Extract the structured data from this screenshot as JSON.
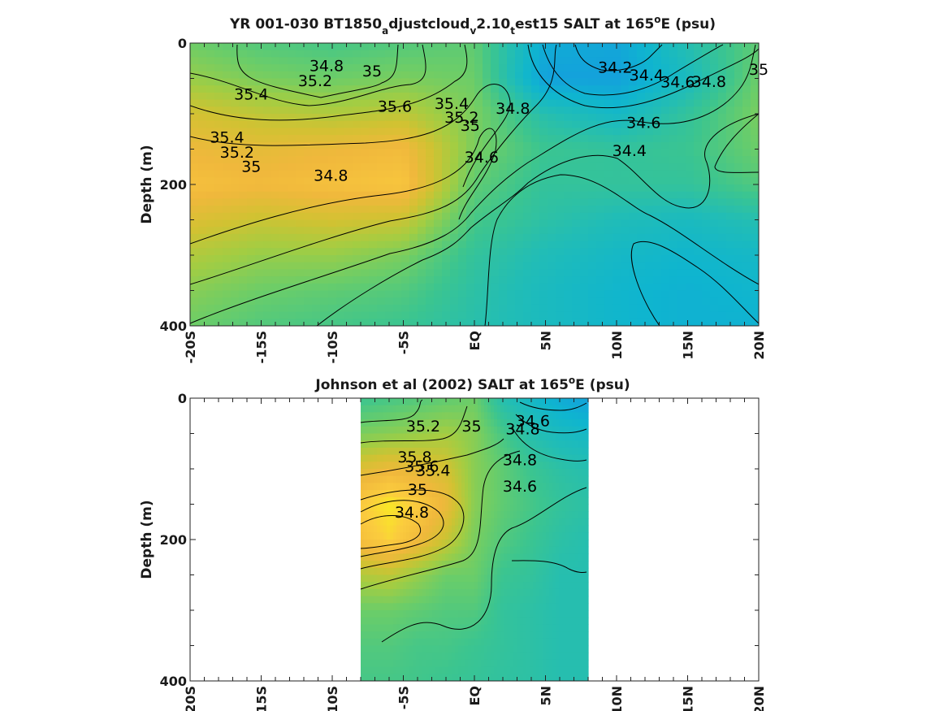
{
  "chart_data": [
    {
      "type": "heatmap",
      "title_parts": [
        "YR 001-030 BT1850",
        "a",
        "djustcloud",
        "v",
        "2.10",
        "t",
        "est15 SALT at 165",
        "o",
        "E (psu)"
      ],
      "ylabel": "Depth (m)",
      "xlim": [
        -20,
        20
      ],
      "ylim": [
        0,
        400
      ],
      "y_reversed": true,
      "x_ticks": [
        {
          "value": -20,
          "label": "-20S"
        },
        {
          "value": -15,
          "label": "-15S"
        },
        {
          "value": -10,
          "label": "-10S"
        },
        {
          "value": -5,
          "label": "-5S"
        },
        {
          "value": 0,
          "label": "EQ"
        },
        {
          "value": 5,
          "label": "5N"
        },
        {
          "value": 10,
          "label": "10N"
        },
        {
          "value": 15,
          "label": "15N"
        },
        {
          "value": 20,
          "label": "20N"
        }
      ],
      "y_ticks": [
        {
          "value": 0,
          "label": "0"
        },
        {
          "value": 200,
          "label": "200"
        },
        {
          "value": 400,
          "label": "400"
        }
      ],
      "data_extent": {
        "x": [
          -20,
          20
        ],
        "y": [
          0,
          400
        ]
      },
      "colorscale": [
        "#2a7ff0",
        "#14a0dc",
        "#0fb5cf",
        "#22bdb5",
        "#3cc58f",
        "#6ccd68",
        "#a2cd43",
        "#d1c232",
        "#f0b83c",
        "#fbcc3e",
        "#f8f41c"
      ],
      "value_range": [
        34.0,
        35.9
      ],
      "field": {
        "x": [
          -20,
          -15,
          -10,
          -5,
          0,
          5,
          10,
          15,
          20
        ],
        "depth": [
          0,
          50,
          100,
          150,
          200,
          250,
          300,
          350,
          400
        ],
        "values": [
          [
            34.95,
            34.85,
            34.8,
            34.85,
            34.9,
            34.3,
            34.25,
            34.6,
            34.9
          ],
          [
            35.1,
            35.0,
            34.95,
            35.0,
            34.95,
            34.2,
            34.2,
            34.5,
            34.95
          ],
          [
            35.35,
            35.25,
            35.2,
            35.25,
            35.0,
            34.6,
            34.45,
            34.7,
            35.0
          ],
          [
            35.5,
            35.45,
            35.5,
            35.55,
            35.0,
            34.75,
            34.7,
            34.75,
            34.95
          ],
          [
            35.6,
            35.55,
            35.6,
            35.65,
            34.9,
            34.7,
            34.7,
            34.7,
            34.85
          ],
          [
            35.4,
            35.3,
            35.35,
            35.3,
            34.8,
            34.65,
            34.55,
            34.5,
            34.6
          ],
          [
            35.2,
            35.1,
            35.1,
            35.0,
            34.7,
            34.55,
            34.45,
            34.4,
            34.45
          ],
          [
            35.05,
            34.95,
            34.9,
            34.85,
            34.65,
            34.5,
            34.4,
            34.35,
            34.4
          ],
          [
            34.95,
            34.85,
            34.8,
            34.75,
            34.62,
            34.5,
            34.4,
            34.35,
            34.35
          ]
        ]
      },
      "contour_labels": [
        {
          "text": "34.8",
          "x": -10.4,
          "y": 33
        },
        {
          "text": "35",
          "x": -7.2,
          "y": 40
        },
        {
          "text": "35.2",
          "x": -11.2,
          "y": 54
        },
        {
          "text": "35.4",
          "x": -15.7,
          "y": 73
        },
        {
          "text": "35.6",
          "x": -5.6,
          "y": 90
        },
        {
          "text": "35.4",
          "x": -1.6,
          "y": 86
        },
        {
          "text": "35.2",
          "x": -0.9,
          "y": 106
        },
        {
          "text": "35",
          "x": -0.3,
          "y": 117
        },
        {
          "text": "34.8",
          "x": 2.7,
          "y": 93
        },
        {
          "text": "34.2",
          "x": 9.9,
          "y": 35
        },
        {
          "text": "34.4",
          "x": 12.1,
          "y": 46
        },
        {
          "text": "34.6",
          "x": 14.3,
          "y": 56
        },
        {
          "text": "34.8",
          "x": 16.5,
          "y": 55
        },
        {
          "text": "35",
          "x": 20.0,
          "y": 38
        },
        {
          "text": "34.6",
          "x": 11.9,
          "y": 113
        },
        {
          "text": "35.4",
          "x": -17.4,
          "y": 134
        },
        {
          "text": "35.2",
          "x": -16.7,
          "y": 155
        },
        {
          "text": "35",
          "x": -15.7,
          "y": 175
        },
        {
          "text": "34.8",
          "x": -10.1,
          "y": 188
        },
        {
          "text": "34.6",
          "x": 0.5,
          "y": 162
        },
        {
          "text": "34.4",
          "x": 10.9,
          "y": 153
        }
      ]
    },
    {
      "type": "heatmap",
      "title_parts": [
        "Johnson et al (2002) SALT at 165",
        "o",
        "E (psu)"
      ],
      "ylabel": "Depth (m)",
      "xlim": [
        -20,
        20
      ],
      "ylim": [
        0,
        400
      ],
      "y_reversed": true,
      "x_ticks": [
        {
          "value": -20,
          "label": "-20S"
        },
        {
          "value": -15,
          "label": "-15S"
        },
        {
          "value": -10,
          "label": "-10S"
        },
        {
          "value": -5,
          "label": "-5S"
        },
        {
          "value": 0,
          "label": "EQ"
        },
        {
          "value": 5,
          "label": "5N"
        },
        {
          "value": 10,
          "label": "10N"
        },
        {
          "value": 15,
          "label": "15N"
        },
        {
          "value": 20,
          "label": "20N"
        }
      ],
      "y_ticks": [
        {
          "value": 0,
          "label": "0"
        },
        {
          "value": 200,
          "label": "200"
        },
        {
          "value": 400,
          "label": "400"
        }
      ],
      "data_extent": {
        "x": [
          -8,
          8
        ],
        "y": [
          0,
          400
        ]
      },
      "colorscale": [
        "#2a7ff0",
        "#14a0dc",
        "#0fb5cf",
        "#22bdb5",
        "#3cc58f",
        "#6ccd68",
        "#a2cd43",
        "#d1c232",
        "#f0b83c",
        "#fbcc3e",
        "#f8f41c"
      ],
      "value_range": [
        34.0,
        35.9
      ],
      "field": {
        "x": [
          -8,
          -6,
          -4,
          -2,
          0,
          2,
          4,
          6,
          8
        ],
        "depth": [
          0,
          50,
          100,
          150,
          200,
          250,
          300,
          350,
          400
        ],
        "values": [
          [
            34.75,
            34.8,
            34.85,
            34.9,
            34.95,
            34.6,
            34.45,
            34.3,
            34.2
          ],
          [
            35.0,
            35.05,
            35.1,
            35.15,
            35.05,
            34.8,
            34.6,
            34.5,
            34.45
          ],
          [
            35.4,
            35.5,
            35.45,
            35.35,
            35.05,
            34.9,
            34.75,
            34.65,
            34.6
          ],
          [
            35.7,
            35.85,
            35.7,
            35.5,
            35.05,
            34.9,
            34.8,
            34.7,
            34.65
          ],
          [
            35.6,
            35.75,
            35.55,
            35.3,
            35.0,
            34.85,
            34.75,
            34.65,
            34.6
          ],
          [
            35.2,
            35.25,
            35.1,
            34.95,
            34.95,
            34.75,
            34.7,
            34.6,
            34.6
          ],
          [
            34.95,
            34.95,
            34.9,
            34.85,
            34.85,
            34.7,
            34.65,
            34.6,
            34.6
          ],
          [
            34.85,
            34.85,
            34.8,
            34.8,
            34.75,
            34.7,
            34.65,
            34.6,
            34.6
          ],
          [
            34.8,
            34.8,
            34.78,
            34.75,
            34.72,
            34.68,
            34.65,
            34.6,
            34.6
          ]
        ]
      },
      "contour_labels": [
        {
          "text": "34.6",
          "x": 4.1,
          "y": 33
        },
        {
          "text": "34.8",
          "x": 3.4,
          "y": 44
        },
        {
          "text": "35.2",
          "x": -3.6,
          "y": 40
        },
        {
          "text": "35",
          "x": -0.2,
          "y": 40
        },
        {
          "text": "35.8",
          "x": -4.2,
          "y": 84
        },
        {
          "text": "35.6",
          "x": -3.7,
          "y": 97
        },
        {
          "text": "35.4",
          "x": -2.9,
          "y": 103
        },
        {
          "text": "34.8",
          "x": 3.2,
          "y": 88
        },
        {
          "text": "34.6",
          "x": 3.2,
          "y": 125
        },
        {
          "text": "35",
          "x": -4.0,
          "y": 130
        },
        {
          "text": "34.8",
          "x": -4.4,
          "y": 162
        }
      ]
    }
  ]
}
